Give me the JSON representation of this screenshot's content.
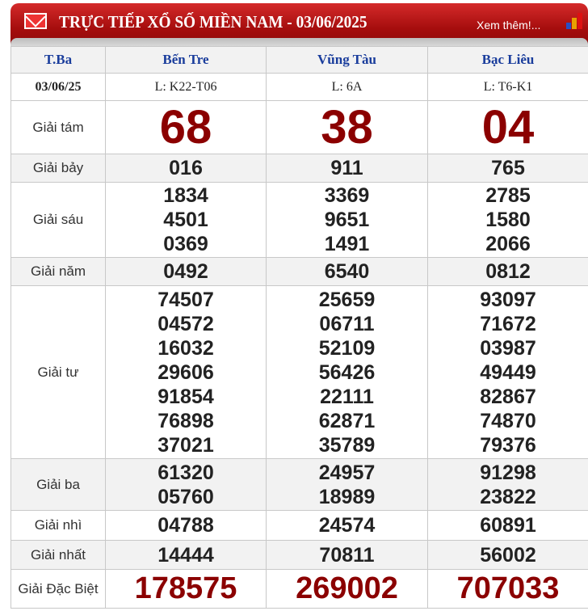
{
  "header": {
    "title": "TRỰC TIẾP XỔ SỐ MIỀN NAM - 03/06/2025",
    "more_link": "Xem thêm!..."
  },
  "table": {
    "day": "T.Ba",
    "date": "03/06/25",
    "provinces": [
      {
        "name": "Bến Tre",
        "ticket": "L: K22-T06"
      },
      {
        "name": "Vũng Tàu",
        "ticket": "L: 6A"
      },
      {
        "name": "Bạc Liêu",
        "ticket": "L: T6-K1"
      }
    ],
    "prizes": [
      {
        "label": "Giải tám",
        "type": "big",
        "values": [
          [
            "68"
          ],
          [
            "38"
          ],
          [
            "04"
          ]
        ]
      },
      {
        "label": "Giải bảy",
        "values": [
          [
            "016"
          ],
          [
            "911"
          ],
          [
            "765"
          ]
        ]
      },
      {
        "label": "Giải sáu",
        "values": [
          [
            "1834",
            "4501",
            "0369"
          ],
          [
            "3369",
            "9651",
            "1491"
          ],
          [
            "2785",
            "1580",
            "2066"
          ]
        ]
      },
      {
        "label": "Giải năm",
        "values": [
          [
            "0492"
          ],
          [
            "6540"
          ],
          [
            "0812"
          ]
        ]
      },
      {
        "label": "Giải tư",
        "values": [
          [
            "74507",
            "04572",
            "16032",
            "29606",
            "91854",
            "76898",
            "37021"
          ],
          [
            "25659",
            "06711",
            "52109",
            "56426",
            "22111",
            "62871",
            "35789"
          ],
          [
            "93097",
            "71672",
            "03987",
            "49449",
            "82867",
            "74870",
            "79376"
          ]
        ]
      },
      {
        "label": "Giải ba",
        "values": [
          [
            "61320",
            "05760"
          ],
          [
            "24957",
            "18989"
          ],
          [
            "91298",
            "23822"
          ]
        ]
      },
      {
        "label": "Giải nhì",
        "values": [
          [
            "04788"
          ],
          [
            "24574"
          ],
          [
            "60891"
          ]
        ]
      },
      {
        "label": "Giải nhất",
        "values": [
          [
            "14444"
          ],
          [
            "70811"
          ],
          [
            "56002"
          ]
        ]
      },
      {
        "label": "Giải Đặc Biệt",
        "type": "db",
        "values": [
          [
            "178575"
          ],
          [
            "269002"
          ],
          [
            "707033"
          ]
        ]
      }
    ]
  },
  "colors": {
    "header_red": "#a50d0d",
    "prize_red": "#8b0000",
    "province_blue": "#1a3d9c"
  }
}
